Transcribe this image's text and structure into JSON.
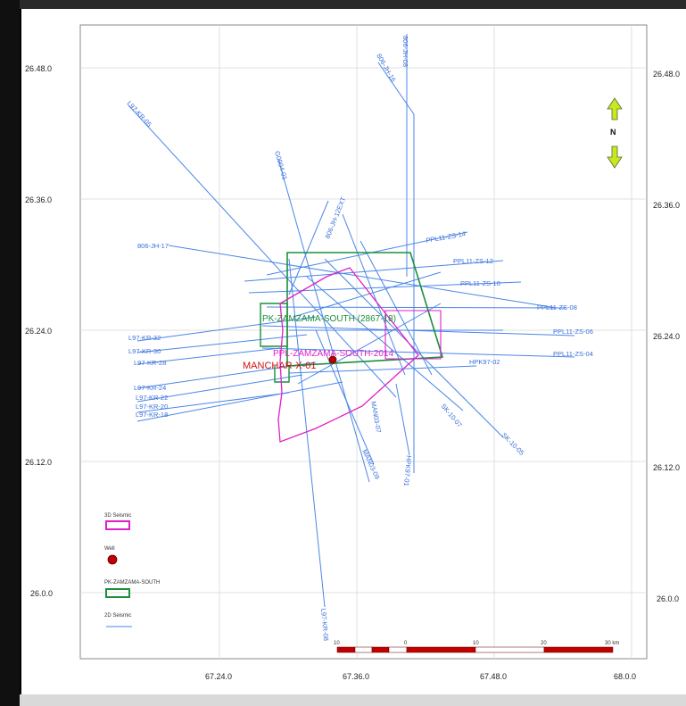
{
  "map": {
    "lat_ticks": [
      "26.48.0",
      "26.36.0",
      "26.24.0",
      "26.12.0",
      "26.0.0"
    ],
    "lon_ticks": [
      "67.24.0",
      "67.36.0",
      "67.48.0",
      "68.0.0"
    ],
    "north_label": "N",
    "scale_labels": [
      "10",
      "0",
      "10",
      "20",
      "30 km"
    ],
    "colors": {
      "seismic_3d": "#e020c8",
      "well": "#c00000",
      "block": "#1b8f3a",
      "seismic_2d": "#4a86e8",
      "scale_red": "#c00000",
      "arrow": "#c8e820"
    },
    "labels": {
      "block": "PK-ZAMZAMA-SOUTH (2867-18)",
      "survey_3d": "PPL-ZAMZAMA-SOUTH-2014",
      "well": "MANCHAR-X-01"
    },
    "seismic_lines": [
      "L97-KR-05",
      "806-JH-16",
      "806-JH-08",
      "G0904-01",
      "806-JH-12EXT",
      "PPL11-ZS-14",
      "806-JH-17",
      "PPL11-ZS-12",
      "PPL11-ZS-10",
      "PPL11-ZS-08",
      "PPL11-ZS-06",
      "PPL11-ZS-04",
      "HPK97-02",
      "L97-KR-32",
      "L97-KR-30",
      "L97-KR-28",
      "L97-KR-24",
      "L97-KR-22",
      "L97-KR-20",
      "L97-KR-18",
      "L97-KR-08",
      "SK-10-05",
      "SK-10-07",
      "MAN03-09",
      "HPK97-01",
      "MAN03-07"
    ]
  },
  "legend": {
    "items": [
      {
        "label": "3D Seismic"
      },
      {
        "label": "Well"
      },
      {
        "label": "PK-ZAMZAMA-SOUTH"
      },
      {
        "label": "2D Seismic"
      }
    ]
  }
}
